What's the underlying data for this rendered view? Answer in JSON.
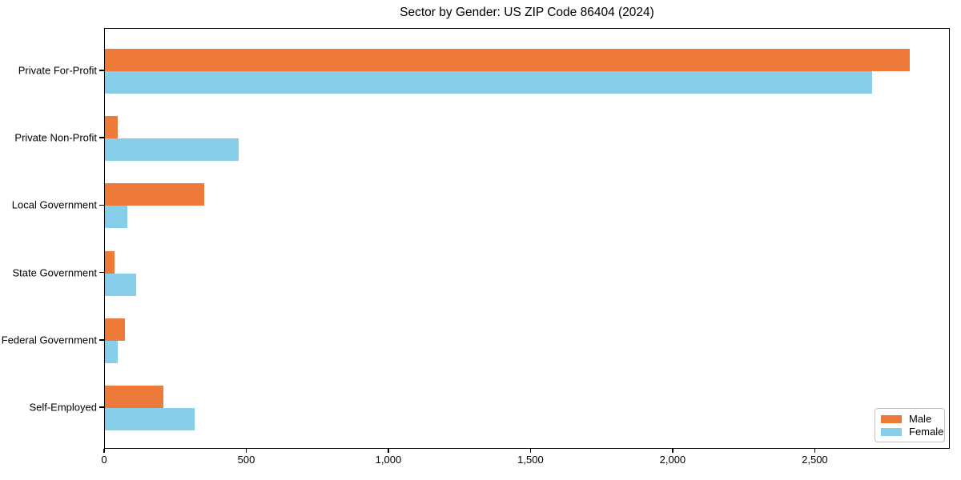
{
  "figure": {
    "background": "#ffffff"
  },
  "chart_data": {
    "type": "bar",
    "orientation": "horizontal",
    "title": "Sector by Gender: US ZIP Code 86404 (2024)",
    "categories": [
      "Private For-Profit",
      "Private Non-Profit",
      "Local Government",
      "State Government",
      "Federal Government",
      "Self-Employed"
    ],
    "series": [
      {
        "name": "Male",
        "color": "#ED7A39",
        "values": [
          2830,
          45,
          350,
          35,
          70,
          205
        ]
      },
      {
        "name": "Female",
        "color": "#87CEEB",
        "values": [
          2700,
          470,
          80,
          110,
          45,
          315
        ]
      }
    ],
    "xlabel": "",
    "ylabel": "",
    "xlim": [
      0,
      2975
    ],
    "xticks": [
      {
        "value": 0,
        "label": "0"
      },
      {
        "value": 500,
        "label": "500"
      },
      {
        "value": 1000,
        "label": "1,000"
      },
      {
        "value": 1500,
        "label": "1,500"
      },
      {
        "value": 2000,
        "label": "2,000"
      },
      {
        "value": 2500,
        "label": "2,500"
      }
    ],
    "grid": false,
    "legend": {
      "position": "lower right",
      "entries": [
        "Male",
        "Female"
      ]
    }
  }
}
